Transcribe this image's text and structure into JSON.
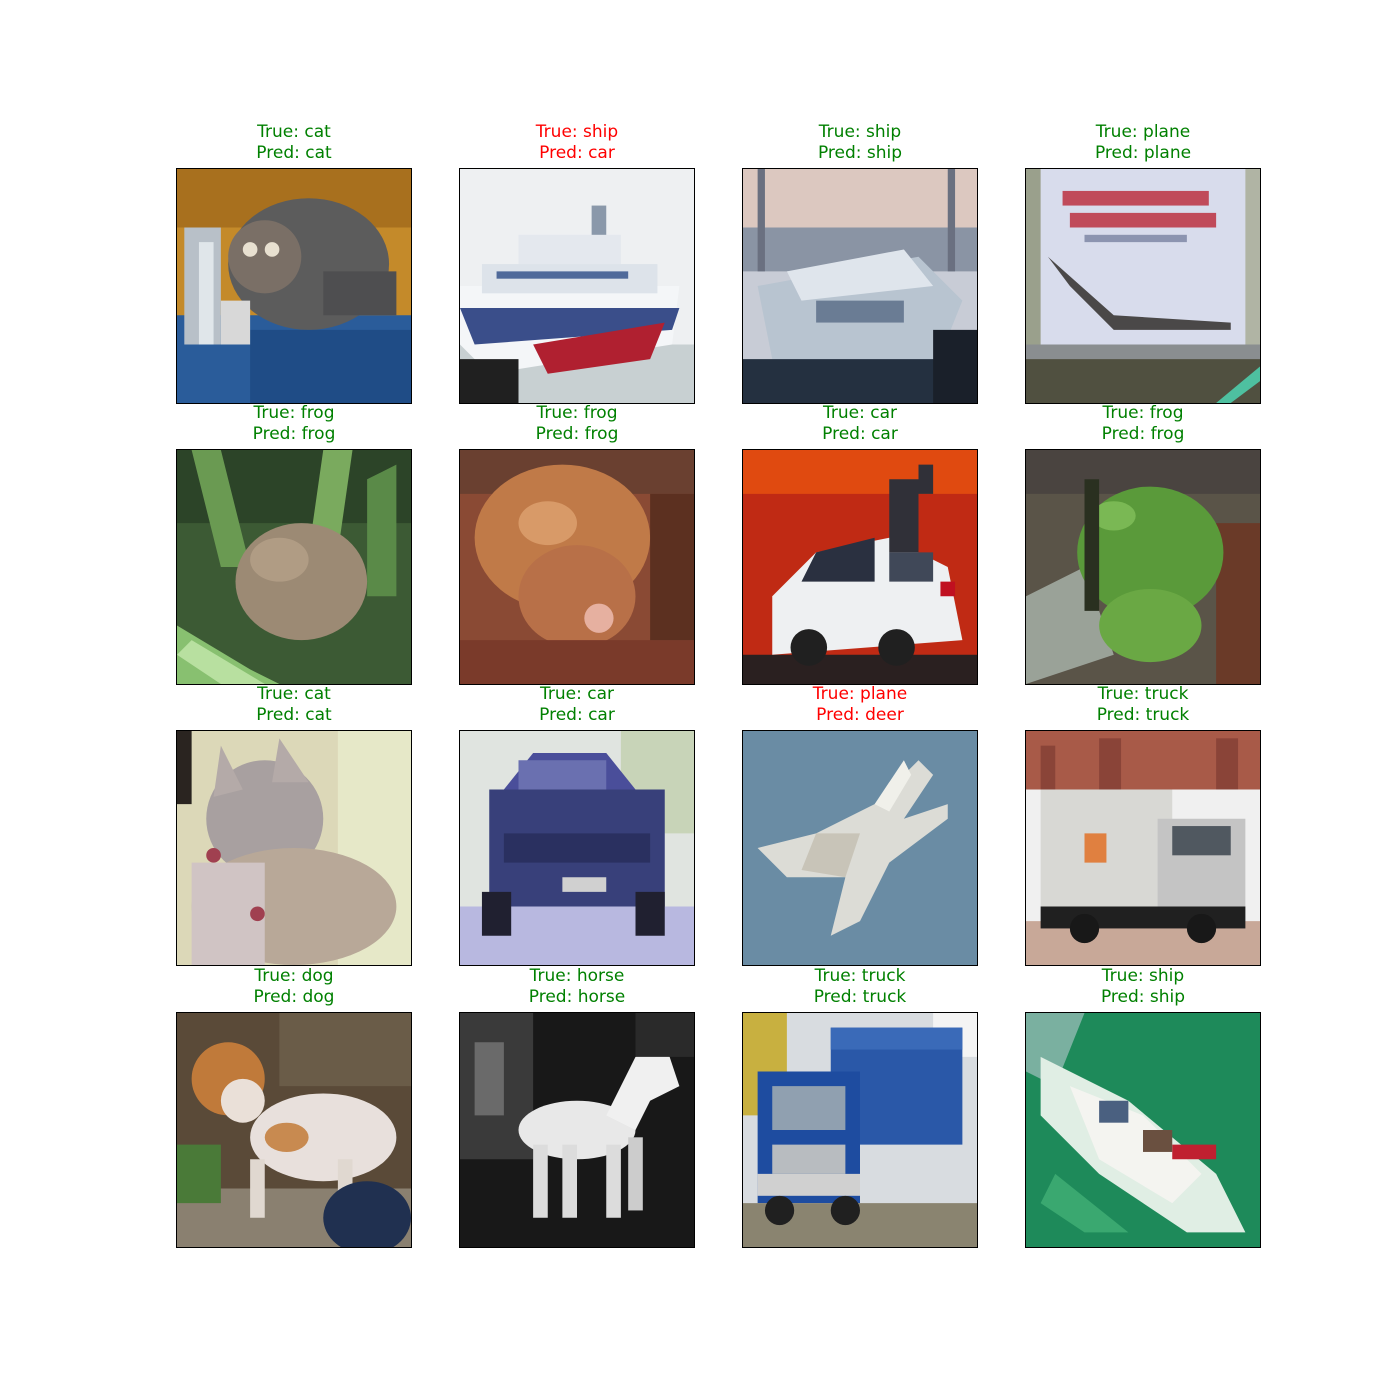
{
  "colors": {
    "correct": "#008000",
    "incorrect": "#ff0000"
  },
  "grid": [
    {
      "id": "cat-1",
      "true_label": "True: cat",
      "pred_label": "Pred: cat",
      "correct": true
    },
    {
      "id": "ship-1",
      "true_label": "True: ship",
      "pred_label": "Pred: car",
      "correct": false
    },
    {
      "id": "ship-2",
      "true_label": "True: ship",
      "pred_label": "Pred: ship",
      "correct": true
    },
    {
      "id": "plane-1",
      "true_label": "True: plane",
      "pred_label": "Pred: plane",
      "correct": true
    },
    {
      "id": "frog-1",
      "true_label": "True: frog",
      "pred_label": "Pred: frog",
      "correct": true
    },
    {
      "id": "frog-2",
      "true_label": "True: frog",
      "pred_label": "Pred: frog",
      "correct": true
    },
    {
      "id": "car-1",
      "true_label": "True: car",
      "pred_label": "Pred: car",
      "correct": true
    },
    {
      "id": "frog-3",
      "true_label": "True: frog",
      "pred_label": "Pred: frog",
      "correct": true
    },
    {
      "id": "cat-2",
      "true_label": "True: cat",
      "pred_label": "Pred: cat",
      "correct": true
    },
    {
      "id": "car-2",
      "true_label": "True: car",
      "pred_label": "Pred: car",
      "correct": true
    },
    {
      "id": "plane-2",
      "true_label": "True: plane",
      "pred_label": "Pred: deer",
      "correct": false
    },
    {
      "id": "truck-1",
      "true_label": "True: truck",
      "pred_label": "Pred: truck",
      "correct": true
    },
    {
      "id": "dog-1",
      "true_label": "True: dog",
      "pred_label": "Pred: dog",
      "correct": true
    },
    {
      "id": "horse-1",
      "true_label": "True: horse",
      "pred_label": "Pred: horse",
      "correct": true
    },
    {
      "id": "truck-2",
      "true_label": "True: truck",
      "pred_label": "Pred: truck",
      "correct": true
    },
    {
      "id": "ship-3",
      "true_label": "True: ship",
      "pred_label": "Pred: ship",
      "correct": true
    }
  ]
}
